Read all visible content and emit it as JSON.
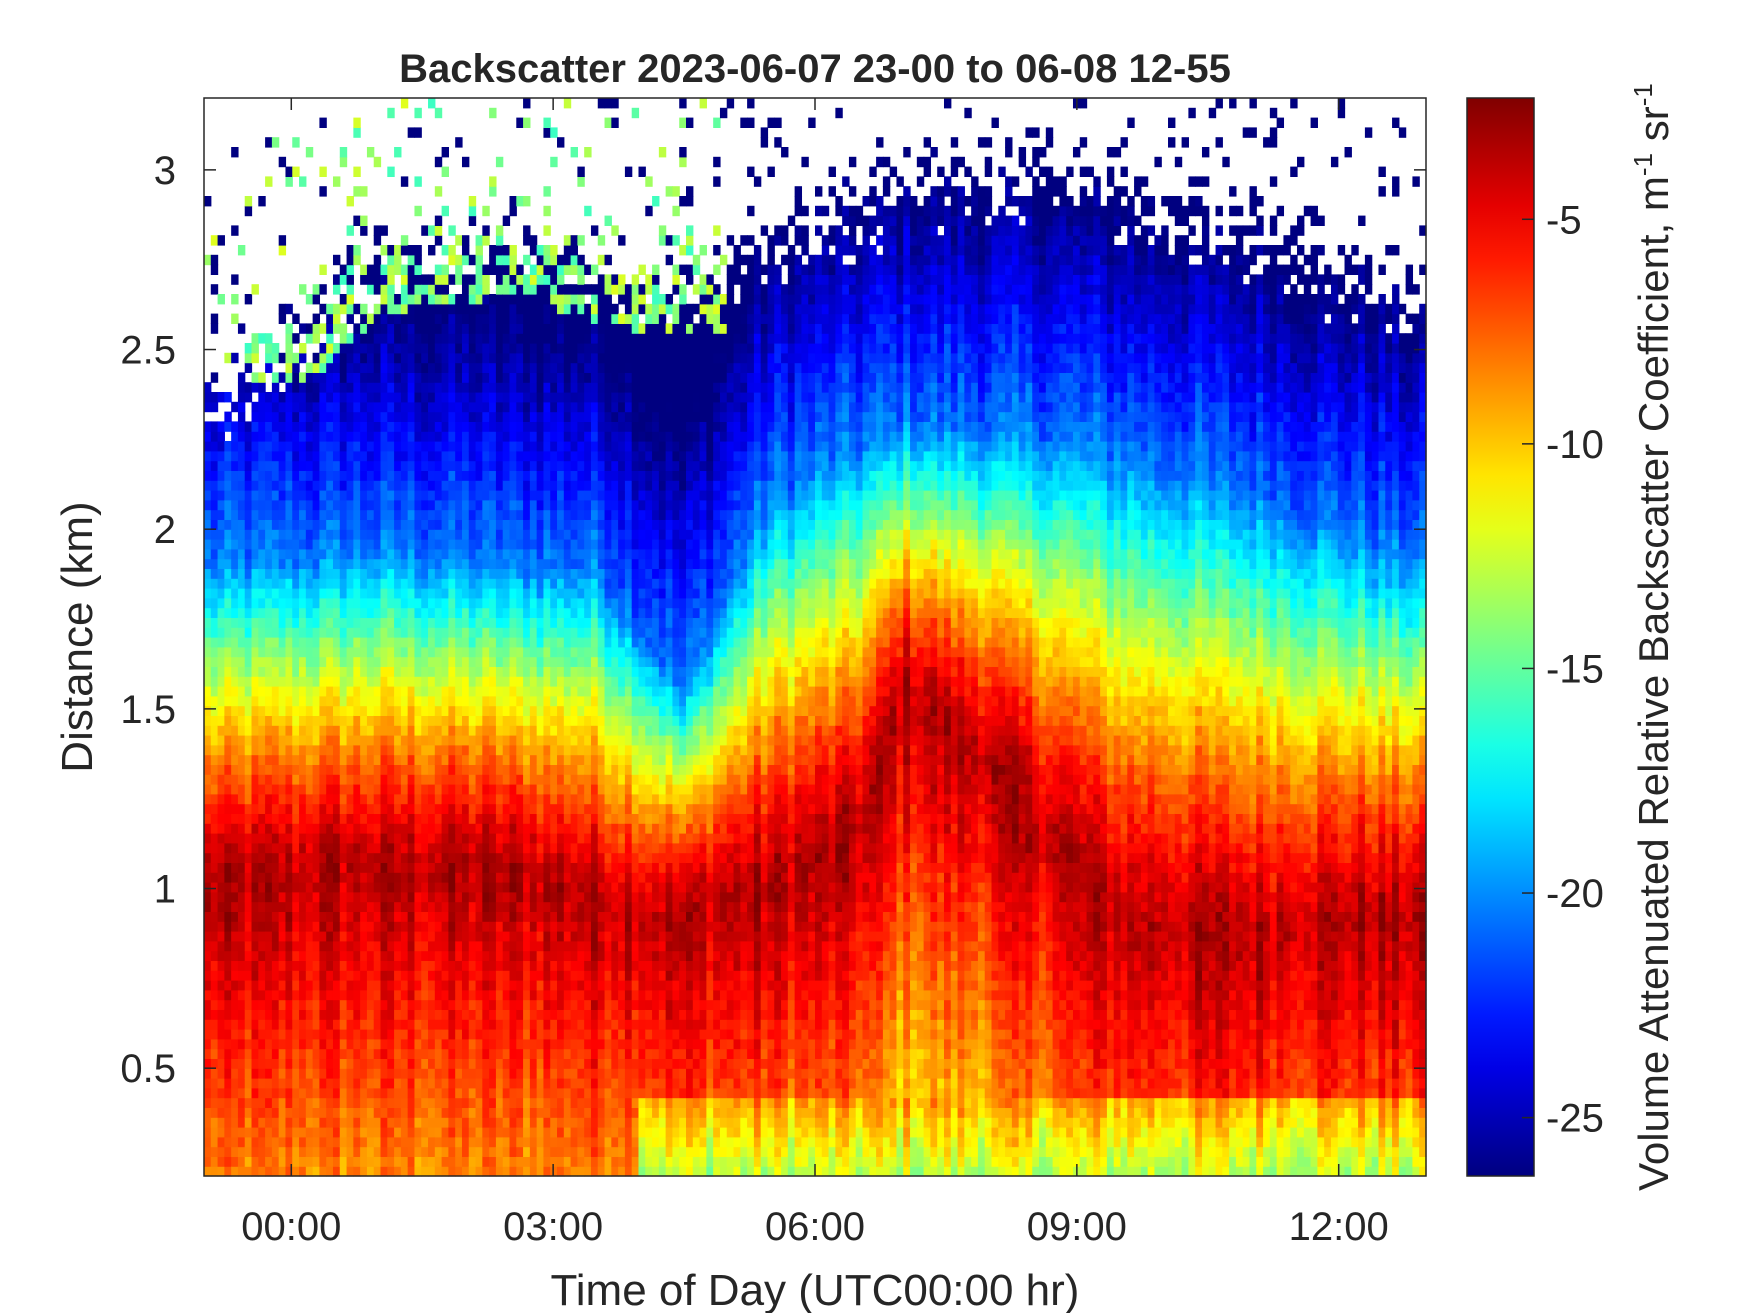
{
  "chart_data": {
    "type": "heatmap",
    "title": "Backscatter 2023-06-07 23-00 to 06-08 12-55",
    "xlabel": "Time of Day (UTC00:00 hr)",
    "ylabel": "Distance (km)",
    "xlim_hours": [
      -1.0,
      13.0
    ],
    "ylim_km": [
      0.2,
      3.2
    ],
    "xticks": [
      {
        "value": 0,
        "label": "00:00"
      },
      {
        "value": 3,
        "label": "03:00"
      },
      {
        "value": 6,
        "label": "06:00"
      },
      {
        "value": 9,
        "label": "09:00"
      },
      {
        "value": 12,
        "label": "12:00"
      }
    ],
    "yticks": [
      {
        "value": 0.5,
        "label": "0.5"
      },
      {
        "value": 1,
        "label": "1"
      },
      {
        "value": 1.5,
        "label": "1.5"
      },
      {
        "value": 2,
        "label": "2"
      },
      {
        "value": 2.5,
        "label": "2.5"
      },
      {
        "value": 3,
        "label": "3"
      }
    ],
    "colorbar": {
      "label": "Volume Attenuated Relative Backscatter Coefficient, m",
      "unit_suffix": " sr",
      "superscript": "-1",
      "colormap": "jet",
      "clim": [
        -26.3,
        -2.3
      ],
      "ticks": [
        {
          "value": -5,
          "label": "-5"
        },
        {
          "value": -10,
          "label": "-10"
        },
        {
          "value": -15,
          "label": "-15"
        },
        {
          "value": -20,
          "label": "-20"
        },
        {
          "value": -25,
          "label": "-25"
        }
      ]
    },
    "features": {
      "aerosol_layer_peak_height_km": [
        {
          "x": -1.0,
          "y": 1.0
        },
        {
          "x": 1.0,
          "y": 1.05
        },
        {
          "x": 2.5,
          "y": 1.05
        },
        {
          "x": 4.0,
          "y": 0.9
        },
        {
          "x": 5.5,
          "y": 1.0
        },
        {
          "x": 6.5,
          "y": 1.15
        },
        {
          "x": 7.0,
          "y": 1.55
        },
        {
          "x": 8.0,
          "y": 1.35
        },
        {
          "x": 9.5,
          "y": 0.9
        },
        {
          "x": 11.0,
          "y": 0.85
        },
        {
          "x": 12.0,
          "y": 0.9
        },
        {
          "x": 13.0,
          "y": 0.92
        }
      ],
      "peak_value": -3.5,
      "no_signal_region": "white pixels above the detection limit (upper part of plot)"
    }
  }
}
